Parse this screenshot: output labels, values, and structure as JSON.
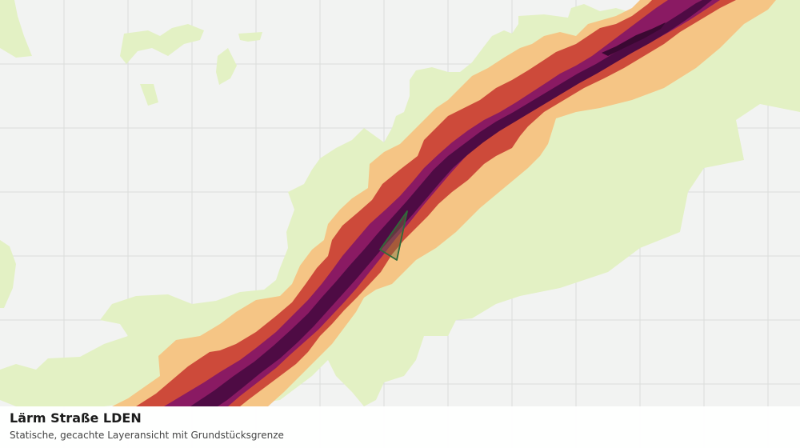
{
  "layer": {
    "title": "Lärm Straße LDEN",
    "subtitle": "Statische, gecachte Layeransicht mit Grundstücksgrenze"
  },
  "legend_colors": {
    "grid_background": "#f2f3f2",
    "grid_line": "#dadcda",
    "band_lowest": "#e3f1c4",
    "band_low": "#f5c585",
    "band_medium": "#cd4a3a",
    "band_high": "#8a1a63",
    "band_highest": "#4e0b44",
    "parcel_outline": "#2f6b3a"
  }
}
